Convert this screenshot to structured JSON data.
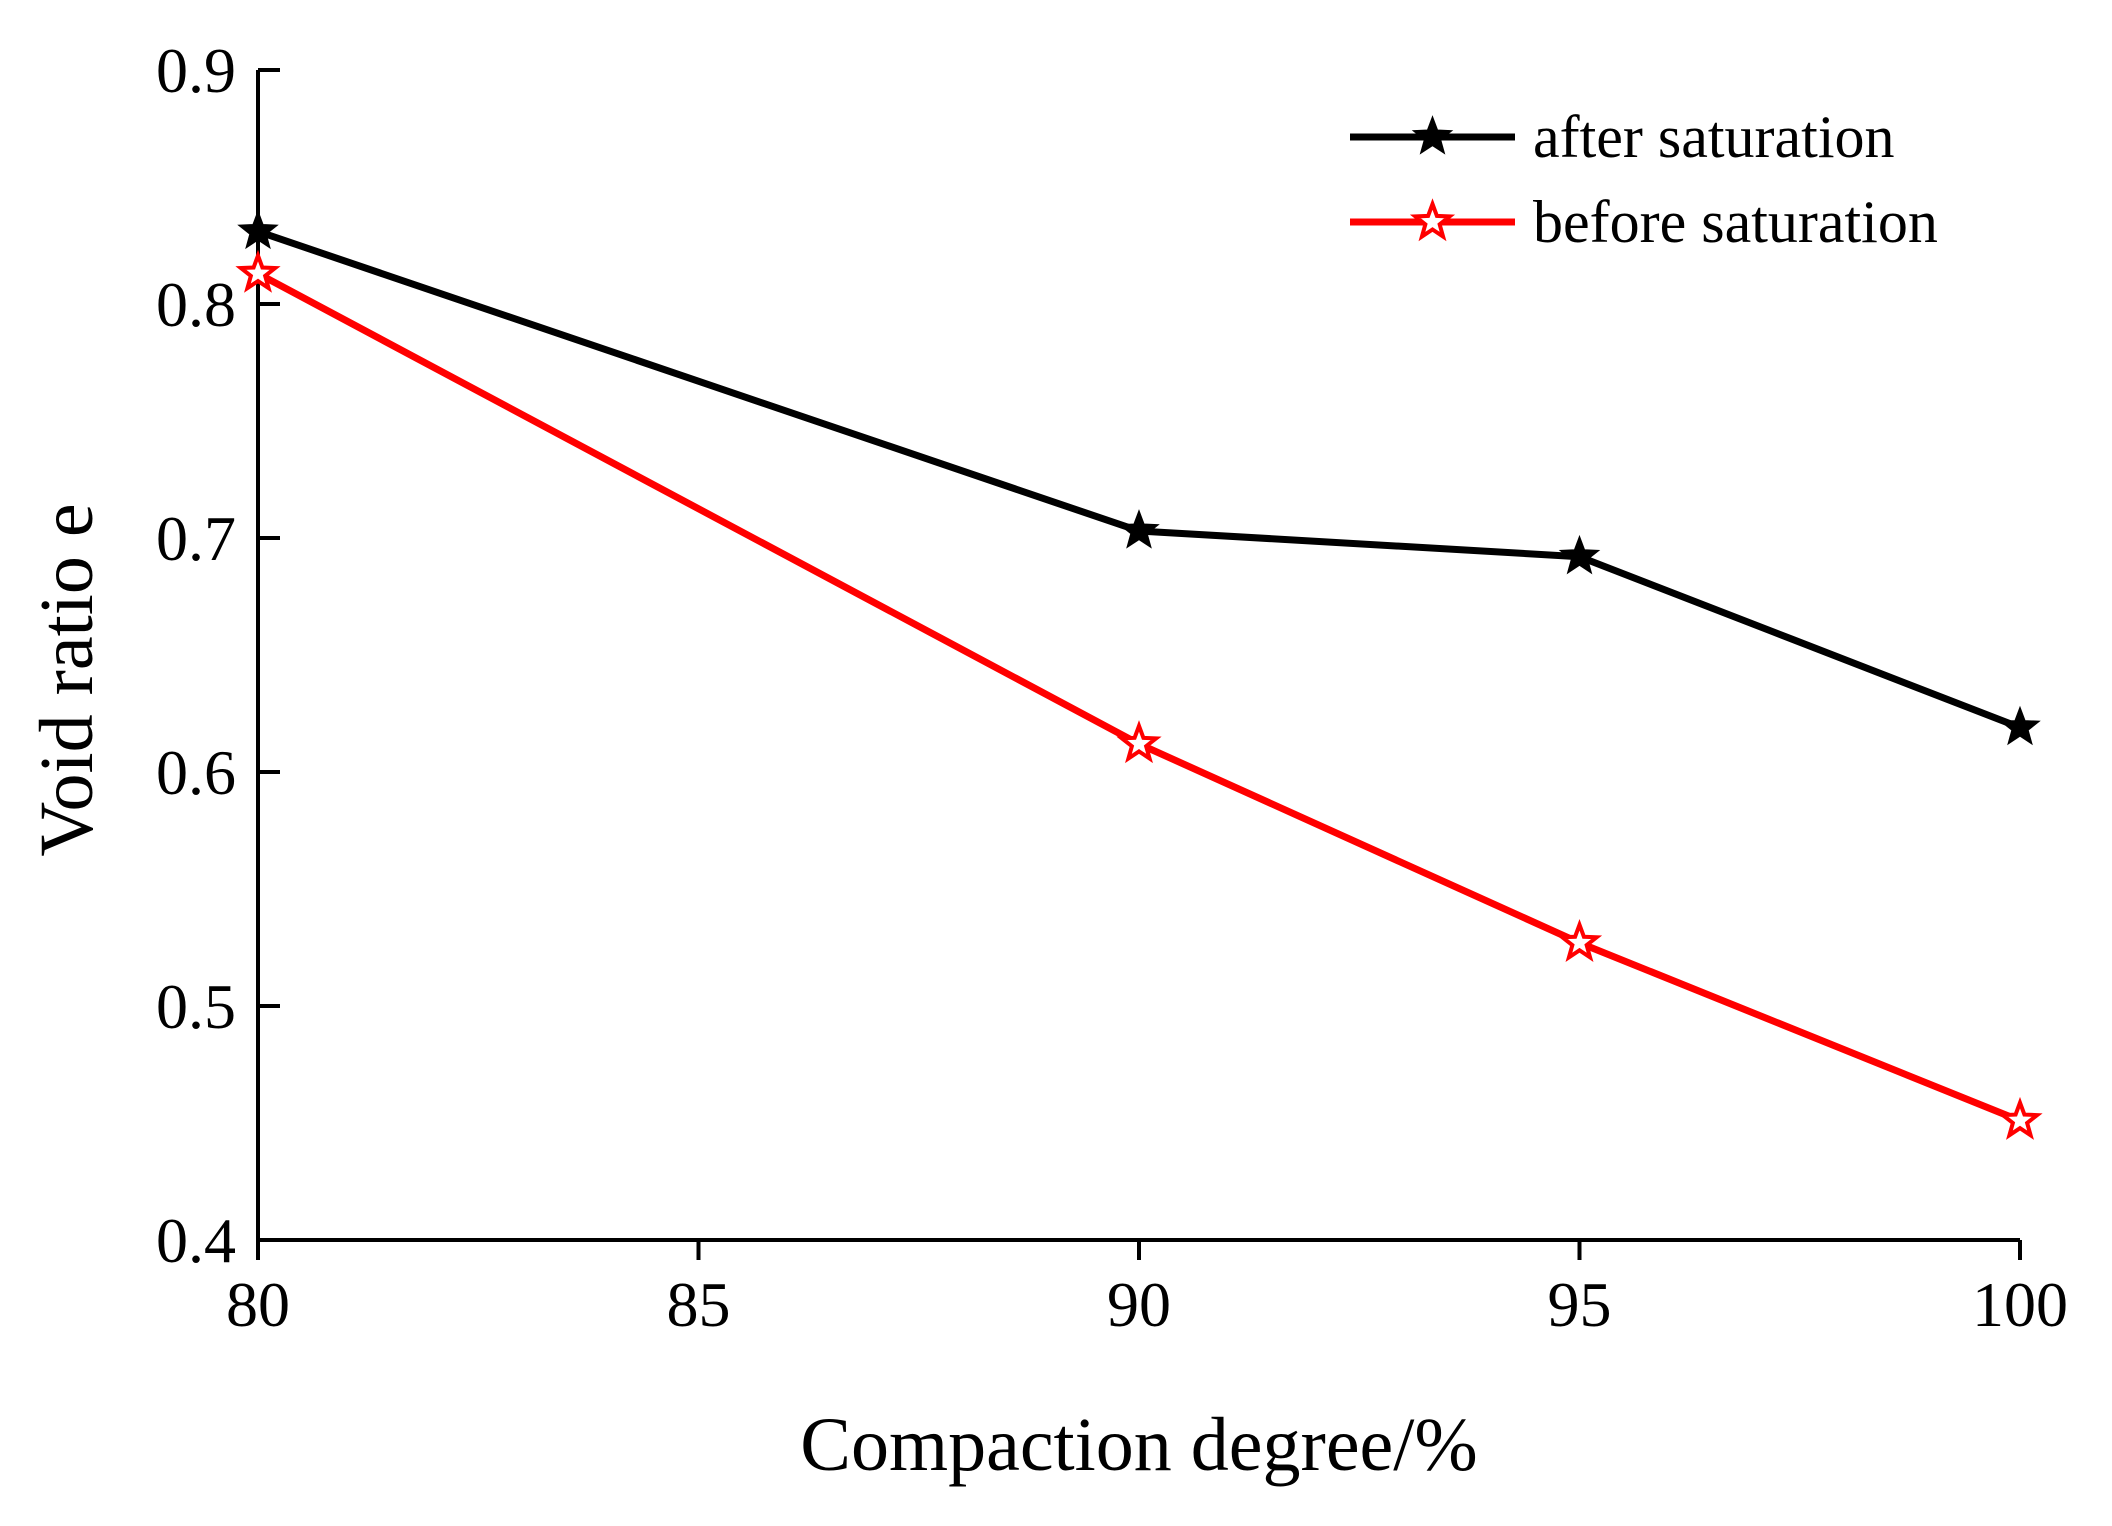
{
  "chart_data": {
    "type": "line",
    "title": "",
    "xlabel": "Compaction degree/%",
    "ylabel": "Void ratio e",
    "x": [
      80,
      90,
      95,
      100
    ],
    "xlim": [
      80,
      100
    ],
    "ylim": [
      0.4,
      0.9
    ],
    "xticks": [
      "80",
      "85",
      "90",
      "95",
      "100"
    ],
    "xtick_values": [
      80,
      85,
      90,
      95,
      100
    ],
    "yticks": [
      "0.4",
      "0.5",
      "0.6",
      "0.7",
      "0.8",
      "0.9"
    ],
    "ytick_values": [
      0.4,
      0.5,
      0.6,
      0.7,
      0.8,
      0.9
    ],
    "grid": false,
    "legend_position": "top-right",
    "series": [
      {
        "name": "after saturation",
        "values": [
          0.831,
          0.703,
          0.692,
          0.619
        ],
        "color": "#000000",
        "marker": "filled-star"
      },
      {
        "name": "before saturation",
        "values": [
          0.813,
          0.612,
          0.527,
          0.451
        ],
        "color": "#ff0000",
        "marker": "hollow-star"
      }
    ]
  }
}
